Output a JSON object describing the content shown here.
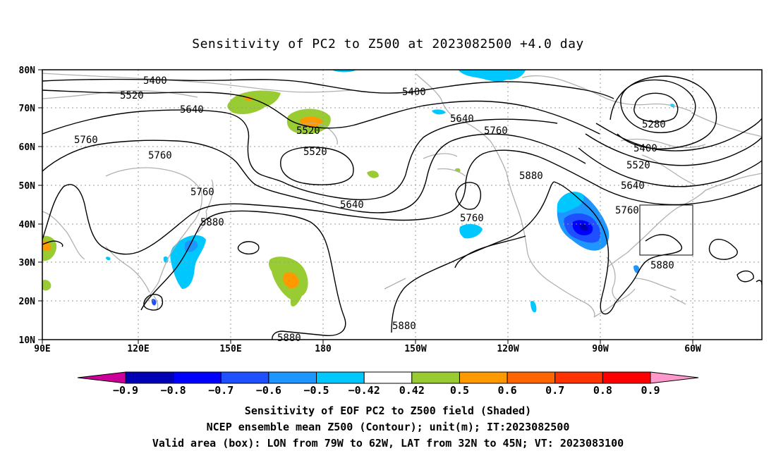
{
  "title": "Sensitivity of PC2 to Z500 at 2023082500 +4.0 day",
  "map": {
    "lon_ticks": [
      "90E",
      "120E",
      "150E",
      "180",
      "150W",
      "120W",
      "90W",
      "60W"
    ],
    "lat_ticks": [
      "80N",
      "70N",
      "60N",
      "50N",
      "40N",
      "30N",
      "20N",
      "10N"
    ],
    "lon_range": [
      90,
      315
    ],
    "lat_range": [
      10,
      80
    ],
    "gridlines": true,
    "coastline_color": "#b0b0b0",
    "contour_color": "#000000",
    "box_color": "#000000",
    "valid_box": {
      "lon": [
        281,
        298
      ],
      "lat": [
        32,
        45
      ]
    }
  },
  "contour_labels": [
    "5400",
    "5520",
    "5640",
    "5760",
    "5760",
    "5400",
    "5640",
    "5760",
    "5280",
    "5400",
    "5520",
    "5640",
    "5520",
    "5520",
    "5760",
    "5640",
    "5880",
    "5760",
    "5880",
    "5880",
    "5880",
    "5760",
    "5880"
  ],
  "colorbar": {
    "levels": [
      "-0.9",
      "-0.8",
      "-0.7",
      "-0.6",
      "-0.5",
      "-0.42",
      "0.42",
      "0.5",
      "0.6",
      "0.7",
      "0.8",
      "0.9"
    ],
    "colors": [
      "#cc0099",
      "#0000b4",
      "#0000ff",
      "#1e50ff",
      "#1e96ff",
      "#00c8ff",
      "#ffffff",
      "#99cc33",
      "#ff9900",
      "#ff6600",
      "#ff3300",
      "#ff0000",
      "#ff99cc"
    ]
  },
  "caption": {
    "line1": "Sensitivity of EOF PC2 to Z500 field (Shaded)",
    "line2": "NCEP ensemble mean Z500 (Contour); unit(m); IT:2023082500",
    "line3": "Valid area (box): LON from 79W to 62W, LAT from 32N to 45N; VT: 2023083100"
  }
}
